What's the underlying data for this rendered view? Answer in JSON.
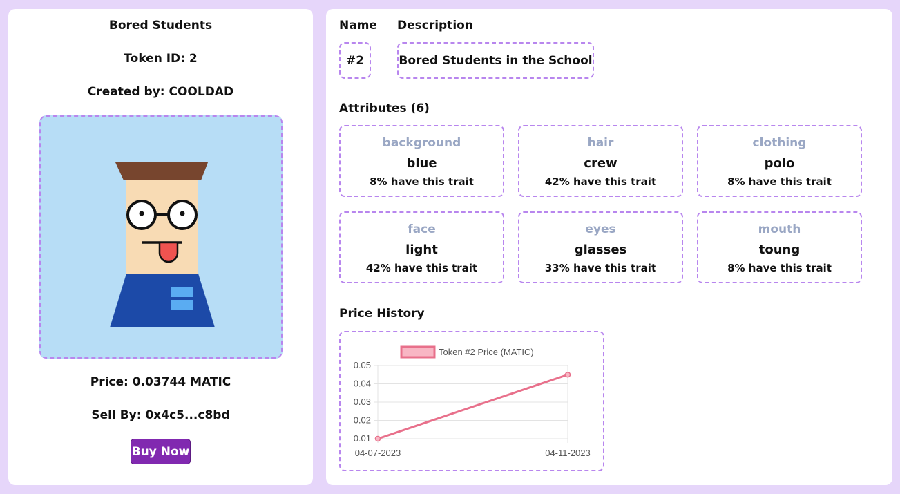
{
  "nft": {
    "title": "Bored Students",
    "token_id_text": "Token ID: 2",
    "creator_text": "Created by: COOLDAD",
    "price_text": "Price: 0.03744 MATIC",
    "seller_text": "Sell By: 0x4c5...c8bd",
    "buy_label": "Buy Now"
  },
  "details": {
    "name_label": "Name",
    "description_label": "Description",
    "name_value": "#2",
    "description_value": "Bored Students in the School",
    "attributes_label": "Attributes (6)",
    "price_history_label": "Price History"
  },
  "attributes": [
    {
      "trait": "background",
      "value": "blue",
      "percent": "8% have this trait"
    },
    {
      "trait": "hair",
      "value": "crew",
      "percent": "42% have this trait"
    },
    {
      "trait": "clothing",
      "value": "polo",
      "percent": "8% have this trait"
    },
    {
      "trait": "face",
      "value": "light",
      "percent": "42% have this trait"
    },
    {
      "trait": "eyes",
      "value": "glasses",
      "percent": "33% have this trait"
    },
    {
      "trait": "mouth",
      "value": "toung",
      "percent": "8% have this trait"
    }
  ],
  "colors": {
    "page_bg": "#e6d6fa",
    "dashed_border": "#b886ee",
    "button": "#8129b0",
    "trait_label": "#9aa7c4",
    "line": "#e8708b",
    "image_bg": "#b7ddf6"
  },
  "chart_data": {
    "type": "line",
    "x": [
      "04-07-2023",
      "04-11-2023"
    ],
    "series": [
      {
        "name": "Token #2 Price (MATIC)",
        "values": [
          0.01,
          0.045
        ]
      }
    ],
    "yticks": [
      "0.05",
      "0.04",
      "0.03",
      "0.02",
      "0.01"
    ],
    "ylim": [
      0.01,
      0.05
    ],
    "grid": true,
    "legend_position": "top"
  }
}
